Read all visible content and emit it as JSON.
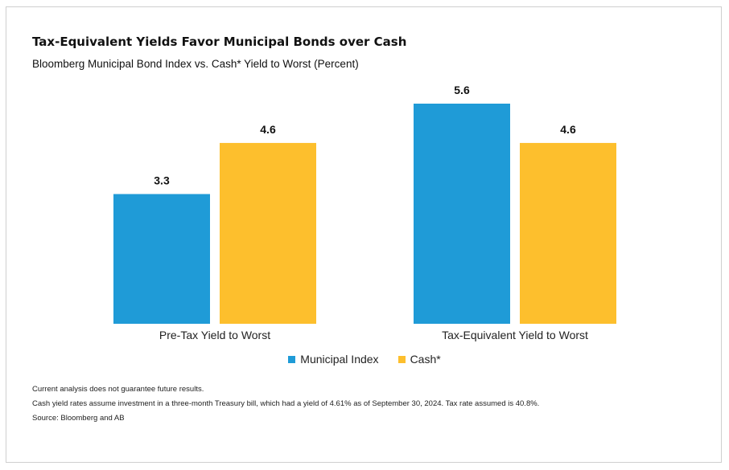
{
  "title": "Tax-Equivalent Yields Favor Municipal Bonds over Cash",
  "subtitle": "Bloomberg Municipal Bond Index vs. Cash* Yield to Worst (Percent)",
  "chart_data": {
    "type": "bar",
    "categories": [
      "Pre-Tax Yield to Worst",
      "Tax-Equivalent Yield to Worst"
    ],
    "series": [
      {
        "name": "Municipal Index",
        "values": [
          3.3,
          5.6
        ],
        "color": "#1f9bd7"
      },
      {
        "name": "Cash*",
        "values": [
          4.6,
          4.6
        ],
        "color": "#fdbf2d"
      }
    ],
    "ylim": [
      0,
      5.6
    ],
    "grid": false,
    "legend": "bottom-center",
    "data_labels": [
      "3.3",
      "5.6",
      "4.6",
      "4.6"
    ]
  },
  "notes": [
    "Current analysis does not guarantee future results.",
    "Cash yield rates assume investment in a three-month Treasury bill, which had a yield of 4.61% as of September 30, 2024. Tax rate assumed is 40.8%.",
    "Source: Bloomberg and AB"
  ]
}
